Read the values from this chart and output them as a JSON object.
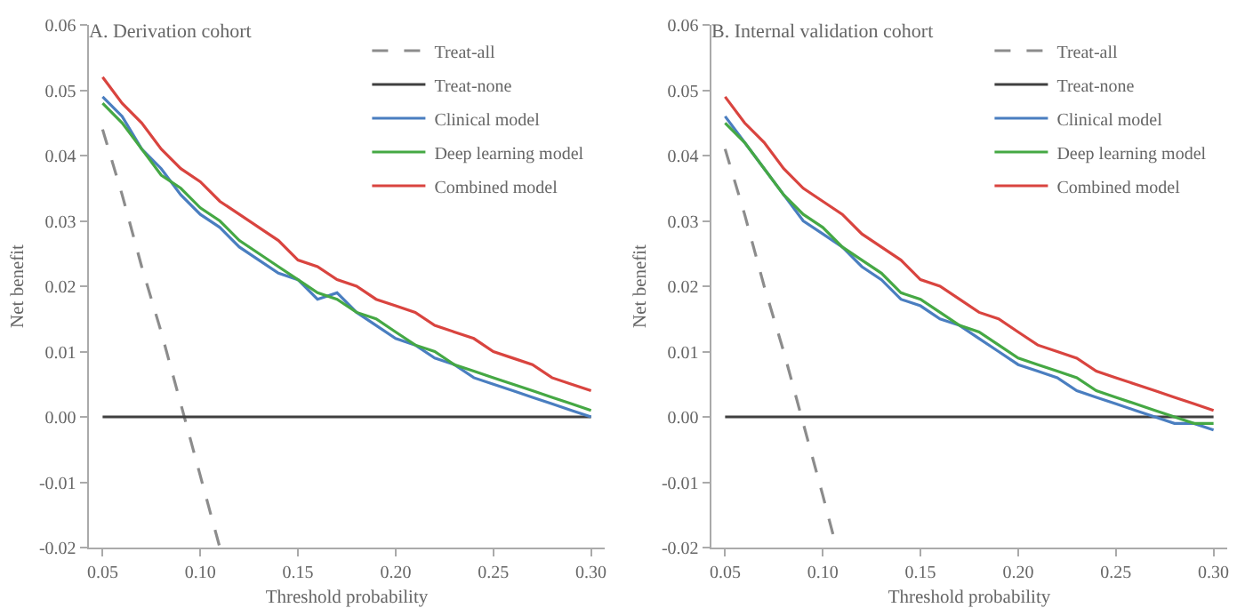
{
  "chart_data": [
    {
      "type": "line",
      "title": "A. Derivation cohort",
      "xlabel": "Threshold probability",
      "ylabel": "Net benefit",
      "legend": "top right",
      "grid": false,
      "xlim": [
        0.043,
        0.307
      ],
      "xticks": [
        {
          "value": 0.05,
          "label": "0.05"
        },
        {
          "value": 0.1,
          "label": "0.10"
        },
        {
          "value": 0.15,
          "label": "0.15"
        },
        {
          "value": 0.2,
          "label": "0.20"
        },
        {
          "value": 0.25,
          "label": "0.25"
        },
        {
          "value": 0.3,
          "label": "0.30"
        }
      ],
      "ylim": [
        -0.02,
        0.06
      ],
      "yticks": [
        {
          "value": -0.02,
          "label": "-0.02"
        },
        {
          "value": -0.01,
          "label": "-0.01"
        },
        {
          "value": 0,
          "label": "0.00"
        },
        {
          "value": 0.01,
          "label": "0.01"
        },
        {
          "value": 0.02,
          "label": "0.02"
        },
        {
          "value": 0.03,
          "label": "0.03"
        },
        {
          "value": 0.04,
          "label": "0.04"
        },
        {
          "value": 0.05,
          "label": "0.05"
        },
        {
          "value": 0.06,
          "label": "0.06"
        }
      ],
      "x": [
        0.05,
        0.06,
        0.07,
        0.08,
        0.09,
        0.1,
        0.11,
        0.12,
        0.13,
        0.14,
        0.15,
        0.16,
        0.17,
        0.18,
        0.19,
        0.2,
        0.21,
        0.22,
        0.23,
        0.24,
        0.25,
        0.26,
        0.27,
        0.28,
        0.29,
        0.3
      ],
      "series": [
        {
          "name": "Treat-all",
          "color": "#8c8c8c",
          "line_style": "dashed",
          "x": [
            0.05,
            0.06,
            0.07,
            0.08,
            0.09,
            0.1,
            0.11
          ],
          "values": [
            0.044,
            0.034,
            0.023,
            0.013,
            0.002,
            -0.009,
            -0.02
          ]
        },
        {
          "name": "Treat-none",
          "color": "#404040",
          "x": [
            0.05,
            0.3
          ],
          "values": [
            0,
            0
          ]
        },
        {
          "name": "Clinical model",
          "color": "#4a7ec0",
          "values": [
            0.049,
            0.046,
            0.041,
            0.038,
            0.034,
            0.031,
            0.029,
            0.026,
            0.024,
            0.022,
            0.021,
            0.018,
            0.019,
            0.016,
            0.014,
            0.012,
            0.011,
            0.009,
            0.008,
            0.006,
            0.005,
            0.004,
            0.003,
            0.002,
            0.001,
            0.0
          ]
        },
        {
          "name": "Deep learning model",
          "color": "#45a844",
          "values": [
            0.048,
            0.045,
            0.041,
            0.037,
            0.035,
            0.032,
            0.03,
            0.027,
            0.025,
            0.023,
            0.021,
            0.019,
            0.018,
            0.016,
            0.015,
            0.013,
            0.011,
            0.01,
            0.008,
            0.007,
            0.006,
            0.005,
            0.004,
            0.003,
            0.002,
            0.001
          ]
        },
        {
          "name": "Combined model",
          "color": "#d9443f",
          "values": [
            0.052,
            0.048,
            0.045,
            0.041,
            0.038,
            0.036,
            0.033,
            0.031,
            0.029,
            0.027,
            0.024,
            0.023,
            0.021,
            0.02,
            0.018,
            0.017,
            0.016,
            0.014,
            0.013,
            0.012,
            0.01,
            0.009,
            0.008,
            0.006,
            0.005,
            0.004
          ]
        }
      ]
    },
    {
      "type": "line",
      "title": "B. Internal validation cohort",
      "xlabel": "Threshold probability",
      "ylabel": "Net benefit",
      "legend": "top right",
      "grid": false,
      "xlim": [
        0.043,
        0.307
      ],
      "xticks": [
        {
          "value": 0.05,
          "label": "0.05"
        },
        {
          "value": 0.1,
          "label": "0.10"
        },
        {
          "value": 0.15,
          "label": "0.15"
        },
        {
          "value": 0.2,
          "label": "0.20"
        },
        {
          "value": 0.25,
          "label": "0.25"
        },
        {
          "value": 0.3,
          "label": "0.30"
        }
      ],
      "ylim": [
        -0.02,
        0.06
      ],
      "yticks": [
        {
          "value": -0.02,
          "label": "-0.02"
        },
        {
          "value": -0.01,
          "label": "-0.01"
        },
        {
          "value": 0,
          "label": "0.00"
        },
        {
          "value": 0.01,
          "label": "0.01"
        },
        {
          "value": 0.02,
          "label": "0.02"
        },
        {
          "value": 0.03,
          "label": "0.03"
        },
        {
          "value": 0.04,
          "label": "0.04"
        },
        {
          "value": 0.05,
          "label": "0.05"
        },
        {
          "value": 0.06,
          "label": "0.06"
        }
      ],
      "x": [
        0.05,
        0.06,
        0.07,
        0.08,
        0.09,
        0.1,
        0.11,
        0.12,
        0.13,
        0.14,
        0.15,
        0.16,
        0.17,
        0.18,
        0.19,
        0.2,
        0.21,
        0.22,
        0.23,
        0.24,
        0.25,
        0.26,
        0.27,
        0.28,
        0.29,
        0.3
      ],
      "series": [
        {
          "name": "Treat-all",
          "color": "#8c8c8c",
          "line_style": "dashed",
          "x": [
            0.05,
            0.06,
            0.07,
            0.08,
            0.09,
            0.1,
            0.107
          ],
          "values": [
            0.041,
            0.031,
            0.02,
            0.01,
            -0.001,
            -0.012,
            -0.02
          ]
        },
        {
          "name": "Treat-none",
          "color": "#404040",
          "x": [
            0.05,
            0.3
          ],
          "values": [
            0,
            0
          ]
        },
        {
          "name": "Clinical model",
          "color": "#4a7ec0",
          "values": [
            0.046,
            0.042,
            0.038,
            0.034,
            0.03,
            0.028,
            0.026,
            0.023,
            0.021,
            0.018,
            0.017,
            0.015,
            0.014,
            0.012,
            0.01,
            0.008,
            0.007,
            0.006,
            0.004,
            0.003,
            0.002,
            0.001,
            0.0,
            -0.001,
            -0.001,
            -0.002
          ]
        },
        {
          "name": "Deep learning model",
          "color": "#45a844",
          "values": [
            0.045,
            0.042,
            0.038,
            0.034,
            0.031,
            0.029,
            0.026,
            0.024,
            0.022,
            0.019,
            0.018,
            0.016,
            0.014,
            0.013,
            0.011,
            0.009,
            0.008,
            0.007,
            0.006,
            0.004,
            0.003,
            0.002,
            0.001,
            0.0,
            -0.001,
            -0.001
          ]
        },
        {
          "name": "Combined model",
          "color": "#d9443f",
          "values": [
            0.049,
            0.045,
            0.042,
            0.038,
            0.035,
            0.033,
            0.031,
            0.028,
            0.026,
            0.024,
            0.021,
            0.02,
            0.018,
            0.016,
            0.015,
            0.013,
            0.011,
            0.01,
            0.009,
            0.007,
            0.006,
            0.005,
            0.004,
            0.003,
            0.002,
            0.001
          ]
        }
      ]
    }
  ]
}
